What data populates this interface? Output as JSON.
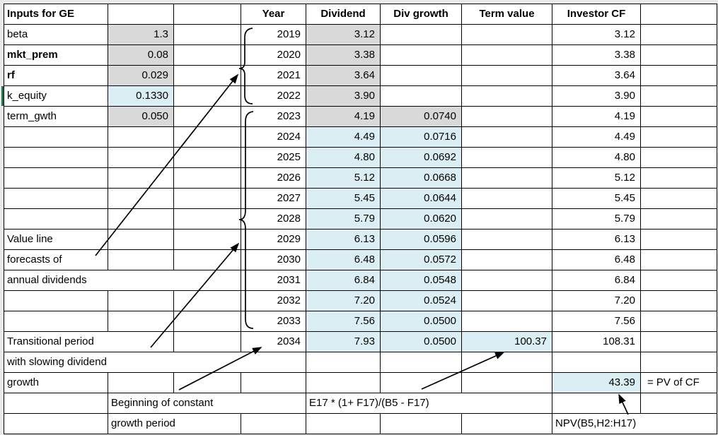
{
  "header": {
    "inputs_title": "Inputs for GE",
    "year": "Year",
    "dividend": "Dividend",
    "div_growth": "Div growth",
    "term_value": "Term value",
    "investor_cf": "Investor CF"
  },
  "inputs": [
    {
      "label": "beta",
      "value": "1.3",
      "bold": false,
      "fill": "gray"
    },
    {
      "label": "mkt_prem",
      "value": "0.08",
      "bold": true,
      "fill": "gray"
    },
    {
      "label": "rf",
      "value": "0.029",
      "bold": true,
      "fill": "gray"
    },
    {
      "label": "k_equity",
      "value": "0.1330",
      "bold": false,
      "fill": "blue"
    },
    {
      "label": "term_gwth",
      "value": "0.050",
      "bold": false,
      "fill": "gray"
    }
  ],
  "rows": [
    {
      "year": "2019",
      "dividend": "3.12",
      "div_growth": "",
      "term_value": "",
      "investor_cf": "3.12"
    },
    {
      "year": "2020",
      "dividend": "3.38",
      "div_growth": "",
      "term_value": "",
      "investor_cf": "3.38"
    },
    {
      "year": "2021",
      "dividend": "3.64",
      "div_growth": "",
      "term_value": "",
      "investor_cf": "3.64"
    },
    {
      "year": "2022",
      "dividend": "3.90",
      "div_growth": "",
      "term_value": "",
      "investor_cf": "3.90"
    },
    {
      "year": "2023",
      "dividend": "4.19",
      "div_growth": "0.0740",
      "term_value": "",
      "investor_cf": "4.19"
    },
    {
      "year": "2024",
      "dividend": "4.49",
      "div_growth": "0.0716",
      "term_value": "",
      "investor_cf": "4.49"
    },
    {
      "year": "2025",
      "dividend": "4.80",
      "div_growth": "0.0692",
      "term_value": "",
      "investor_cf": "4.80"
    },
    {
      "year": "2026",
      "dividend": "5.12",
      "div_growth": "0.0668",
      "term_value": "",
      "investor_cf": "5.12"
    },
    {
      "year": "2027",
      "dividend": "5.45",
      "div_growth": "0.0644",
      "term_value": "",
      "investor_cf": "5.45"
    },
    {
      "year": "2028",
      "dividend": "5.79",
      "div_growth": "0.0620",
      "term_value": "",
      "investor_cf": "5.79"
    },
    {
      "year": "2029",
      "dividend": "6.13",
      "div_growth": "0.0596",
      "term_value": "",
      "investor_cf": "6.13"
    },
    {
      "year": "2030",
      "dividend": "6.48",
      "div_growth": "0.0572",
      "term_value": "",
      "investor_cf": "6.48"
    },
    {
      "year": "2031",
      "dividend": "6.84",
      "div_growth": "0.0548",
      "term_value": "",
      "investor_cf": "6.84"
    },
    {
      "year": "2032",
      "dividend": "7.20",
      "div_growth": "0.0524",
      "term_value": "",
      "investor_cf": "7.20"
    },
    {
      "year": "2033",
      "dividend": "7.56",
      "div_growth": "0.0500",
      "term_value": "",
      "investor_cf": "7.56"
    },
    {
      "year": "2034",
      "dividend": "7.93",
      "div_growth": "0.0500",
      "term_value": "100.37",
      "investor_cf": "108.31"
    }
  ],
  "annotations": {
    "value_line": [
      "Value line",
      "forecasts of",
      "annual dividends"
    ],
    "transitional": [
      "Transitional period",
      "with slowing dividend",
      "growth"
    ],
    "constant": [
      "Beginning of constant",
      "growth period"
    ],
    "pv_value": "43.39",
    "pv_label": "= PV of CF",
    "term_formula": "E17 * (1+ F17)/(B5 - F17)",
    "npv_formula": "NPV(B5,H2:H17)"
  },
  "colors": {
    "gray_fill": "#d9d9d9",
    "blue_fill": "#daeef3",
    "grid_border": "#000000",
    "selection_green": "#217346",
    "margin_gray": "#e9e9e9"
  }
}
